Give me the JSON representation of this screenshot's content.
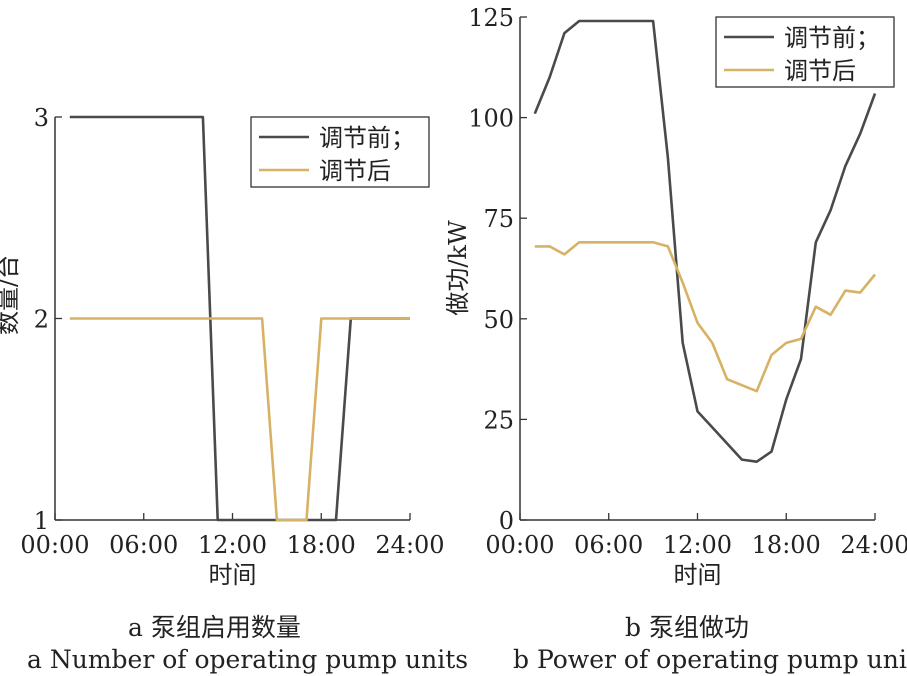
{
  "colors": {
    "before": "#4a4a4a",
    "after": "#d8b264",
    "axis": "#333333"
  },
  "captions": {
    "a_cn": "a  泵组启用数量",
    "a_en": "a  Number of operating pump units",
    "b_cn": "b  泵组做功",
    "b_en": "b  Power of operating pump units"
  },
  "chart_data": [
    {
      "type": "line",
      "title": "",
      "xlabel": "时间",
      "ylabel": "数量/台",
      "xticks": [
        "00:00",
        "06:00",
        "12:00",
        "18:00",
        "24:00"
      ],
      "xlim": [
        0,
        24
      ],
      "ylim": [
        1,
        3
      ],
      "yticks": [
        "1",
        "2",
        "3"
      ],
      "legend": {
        "position": "top-right"
      },
      "grid": false,
      "series": [
        {
          "name": "调节前；",
          "color_key": "before",
          "x": [
            1,
            10,
            11,
            19,
            20,
            24
          ],
          "y": [
            3,
            3,
            1,
            1,
            2,
            2
          ]
        },
        {
          "name": "调节后",
          "color_key": "after",
          "x": [
            1,
            14,
            15,
            17,
            18,
            24
          ],
          "y": [
            2,
            2,
            1,
            1,
            2,
            2
          ]
        }
      ]
    },
    {
      "type": "line",
      "title": "",
      "xlabel": "时间",
      "ylabel": "做功/kW",
      "xticks": [
        "00:00",
        "06:00",
        "12:00",
        "18:00",
        "24:00"
      ],
      "xlim": [
        0,
        24
      ],
      "ylim": [
        0,
        125
      ],
      "yticks": [
        "0",
        "25",
        "50",
        "75",
        "100",
        "125"
      ],
      "legend": {
        "position": "top-right"
      },
      "grid": false,
      "series": [
        {
          "name": "调节前；",
          "color_key": "before",
          "x": [
            1,
            2,
            3,
            4,
            5,
            6,
            7,
            8,
            9,
            10,
            11,
            12,
            13,
            14,
            15,
            16,
            17,
            18,
            19,
            20,
            21,
            22,
            23,
            24
          ],
          "y": [
            101,
            110,
            121,
            124,
            124,
            124,
            124,
            124,
            124,
            90,
            44,
            27,
            23,
            19,
            15,
            14.5,
            17,
            30,
            40,
            69,
            77,
            88,
            96,
            106
          ]
        },
        {
          "name": "调节后",
          "color_key": "after",
          "x": [
            1,
            2,
            3,
            4,
            5,
            6,
            7,
            8,
            9,
            10,
            11,
            12,
            13,
            14,
            15,
            16,
            17,
            18,
            19,
            20,
            21,
            22,
            23,
            24
          ],
          "y": [
            68,
            68,
            66,
            69,
            69,
            69,
            69,
            69,
            69,
            68,
            59,
            49,
            44,
            35,
            33.5,
            32,
            41,
            44,
            45,
            53,
            51,
            57,
            56.5,
            61
          ]
        }
      ]
    }
  ]
}
